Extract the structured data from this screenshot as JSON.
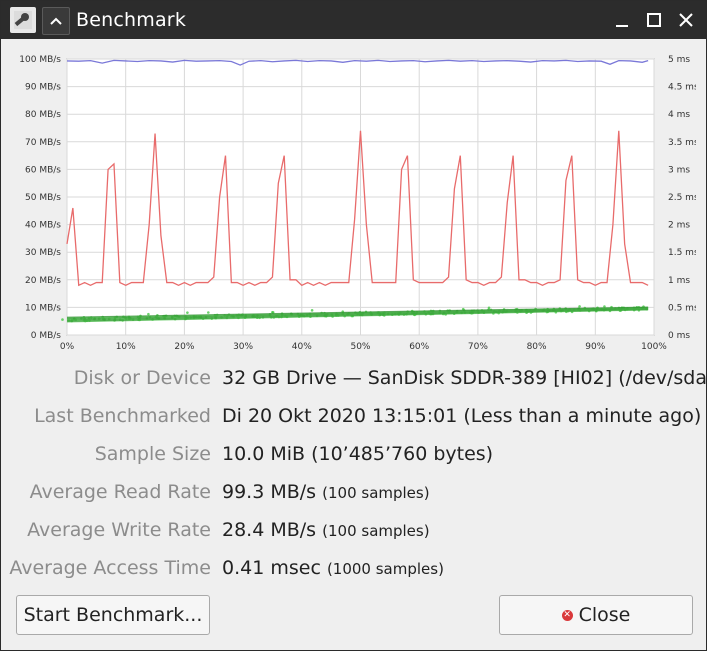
{
  "window": {
    "title": "Benchmark",
    "app_icon": "disks-wrench-icon",
    "controls": [
      "chevron-up-icon",
      "minimize-icon",
      "maximize-icon",
      "close-icon"
    ]
  },
  "chart_data": {
    "type": "line",
    "x_ticks": [
      "0%",
      "10%",
      "20%",
      "30%",
      "40%",
      "50%",
      "60%",
      "70%",
      "80%",
      "90%",
      "100%"
    ],
    "y_left_ticks": [
      "0 MB/s",
      "10 MB/s",
      "20 MB/s",
      "30 MB/s",
      "40 MB/s",
      "50 MB/s",
      "60 MB/s",
      "70 MB/s",
      "80 MB/s",
      "90 MB/s",
      "100 MB/s"
    ],
    "y_right_ticks": [
      "0 ms",
      "0.5 ms",
      "1 ms",
      "1.5 ms",
      "2 ms",
      "2.5 ms",
      "3 ms",
      "3.5 ms",
      "4 ms",
      "4.5 ms",
      "5 ms"
    ],
    "xlim": [
      0,
      100
    ],
    "ylim_left": [
      0,
      100
    ],
    "ylim_right": [
      0,
      5
    ],
    "grid": true,
    "colors": {
      "read": "#7a78d8",
      "write": "#e86b6b",
      "access": "#3bc43b"
    },
    "series": [
      {
        "kind": "read",
        "x": [
          0,
          2,
          4,
          6,
          8,
          10,
          12,
          14,
          16,
          18,
          20,
          22,
          24,
          26,
          28,
          29.5,
          31,
          33,
          35,
          37,
          39,
          41,
          43,
          45,
          47,
          49,
          51,
          53,
          55,
          57,
          59,
          61,
          63,
          65,
          67,
          69,
          71,
          73,
          75,
          77,
          79,
          81,
          83,
          85,
          87,
          89,
          91,
          92.5,
          94,
          96,
          98,
          99
        ],
        "values": [
          99.3,
          99.2,
          99.4,
          98.5,
          99.5,
          99.3,
          99.1,
          99.4,
          99.3,
          98.9,
          99.5,
          99.2,
          99.3,
          99.4,
          99.1,
          97.8,
          99.2,
          99.4,
          99.0,
          99.3,
          99.5,
          99.1,
          99.4,
          99.3,
          98.8,
          99.4,
          99.2,
          99.5,
          99.1,
          99.3,
          99.4,
          99.0,
          99.3,
          99.5,
          99.2,
          99.4,
          99.1,
          99.3,
          99.4,
          99.2,
          98.9,
          99.4,
          99.3,
          99.5,
          99.1,
          99.3,
          99.2,
          98.1,
          99.4,
          99.3,
          98.8,
          99.4
        ]
      },
      {
        "kind": "write",
        "x": [
          0,
          1,
          2,
          3,
          4,
          5,
          6,
          7,
          8,
          9,
          10,
          11,
          12,
          13,
          14,
          15,
          16,
          17,
          18,
          19,
          20,
          21,
          22,
          23,
          24,
          25,
          26,
          27,
          28,
          29,
          30,
          31,
          32,
          33,
          34,
          35,
          36,
          37,
          38,
          39,
          40,
          41,
          42,
          43,
          44,
          45,
          46,
          47,
          48,
          49,
          50,
          51,
          52,
          53,
          54,
          55,
          56,
          57,
          58,
          59,
          60,
          61,
          62,
          63,
          64,
          65,
          66,
          67,
          68,
          69,
          70,
          71,
          72,
          73,
          74,
          75,
          76,
          77,
          78,
          79,
          80,
          81,
          82,
          83,
          84,
          85,
          86,
          87,
          88,
          89,
          90,
          91,
          92,
          93,
          94,
          95,
          96,
          97,
          98,
          99
        ],
        "values": [
          33,
          46,
          18,
          19,
          18,
          19,
          19,
          60,
          62,
          19,
          18,
          19,
          19,
          19,
          40,
          73,
          36,
          19,
          19,
          18,
          19,
          18,
          19,
          19,
          19,
          21,
          50,
          65,
          19,
          19,
          18,
          19,
          18,
          19,
          19,
          21,
          55,
          65,
          20,
          20,
          18,
          19,
          18,
          19,
          18,
          19,
          19,
          19,
          19,
          42,
          74,
          40,
          19,
          19,
          19,
          19,
          19,
          60,
          65,
          20,
          19,
          19,
          19,
          19,
          19,
          21,
          53,
          65,
          20,
          19,
          19,
          18,
          19,
          19,
          21,
          48,
          65,
          20,
          20,
          19,
          19,
          18,
          19,
          19,
          20,
          56,
          65,
          20,
          19,
          19,
          18,
          19,
          19,
          40,
          74,
          33,
          19,
          19,
          19,
          18
        ]
      },
      {
        "kind": "access",
        "start": [
          0,
          0.28
        ],
        "end": [
          99,
          0.48
        ],
        "spread": 0.07
      }
    ]
  },
  "stats": [
    {
      "label": "Disk or Device",
      "value": "32 GB Drive — SanDisk SDDR-389 [HI02] (/dev/sda)",
      "note": ""
    },
    {
      "label": "Last Benchmarked",
      "value": "Di 20 Okt 2020 13:15:01 (Less than a minute ago)",
      "note": ""
    },
    {
      "label": "Sample Size",
      "value": "10.0 MiB (10’485’760 bytes)",
      "note": ""
    },
    {
      "label": "Average Read Rate",
      "value": "99.3 MB/s",
      "note": "(100 samples)"
    },
    {
      "label": "Average Write Rate",
      "value": "28.4 MB/s",
      "note": "(100 samples)"
    },
    {
      "label": "Average Access Time",
      "value": "0.41 msec",
      "note": "(1000 samples)"
    }
  ],
  "buttons": {
    "start": "Start Benchmark...",
    "close": "Close",
    "close_icon": "close-circle-icon"
  }
}
